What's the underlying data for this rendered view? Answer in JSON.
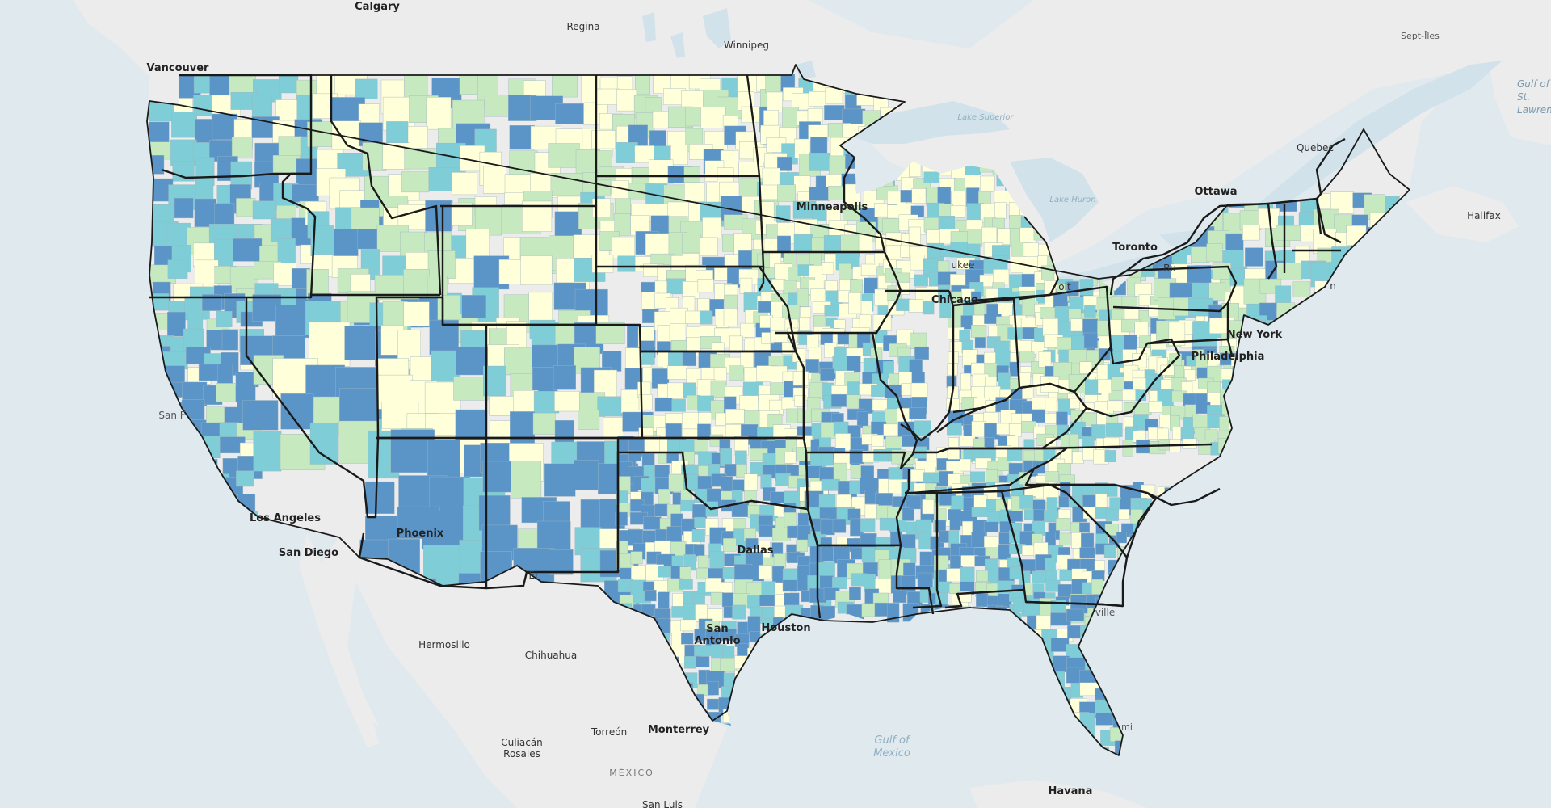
{
  "colors": {
    "water": "#dfe9ee",
    "land": "#ececec",
    "lakes": "#d2e2ea",
    "stateBorder": "#1a1a1a",
    "classes": [
      "#ffffd9",
      "#c7e9c0",
      "#7fcdd6",
      "#5b95c8"
    ]
  },
  "labels": {
    "calgary": "Calgary",
    "regina": "Regina",
    "winnipeg": "Winnipeg",
    "vancouver": "Vancouver",
    "septiles": "Sept-Îles",
    "gulfstl": "Gulf of St. Lawrence",
    "quebec": "Quebec",
    "ottawa": "Ottawa",
    "halifax": "Halifax",
    "lakesuperior": "Lake Superior",
    "lakehuron": "Lake Huron",
    "minneapolis": "Minneapolis",
    "toronto": "Toronto",
    "milwaukee": "ukee",
    "chicago": "Chicago",
    "detroit": "oit",
    "buffalo": "Bu",
    "boston": "n",
    "newyork": "New York",
    "philadelphia": "Philadelphia",
    "sanfrancisco": "San F",
    "losangeles": "Los Angeles",
    "sandiego": "San Diego",
    "phoenix": "Phoenix",
    "elpaso": "El",
    "dallas": "Dallas",
    "sanantonio": "San Antonio",
    "houston": "Houston",
    "jacksonville": "ville",
    "miami": "mi",
    "hermosillo": "Hermosillo",
    "chihuahua": "Chihuahua",
    "torreon": "Torreón",
    "monterrey": "Monterrey",
    "culiacan": "Culiacán Rosales",
    "mexico": "MÉXICO",
    "gulfofmexico": "Gulf of Mexico",
    "sanluis": "San Luis",
    "havana": "Havana"
  }
}
